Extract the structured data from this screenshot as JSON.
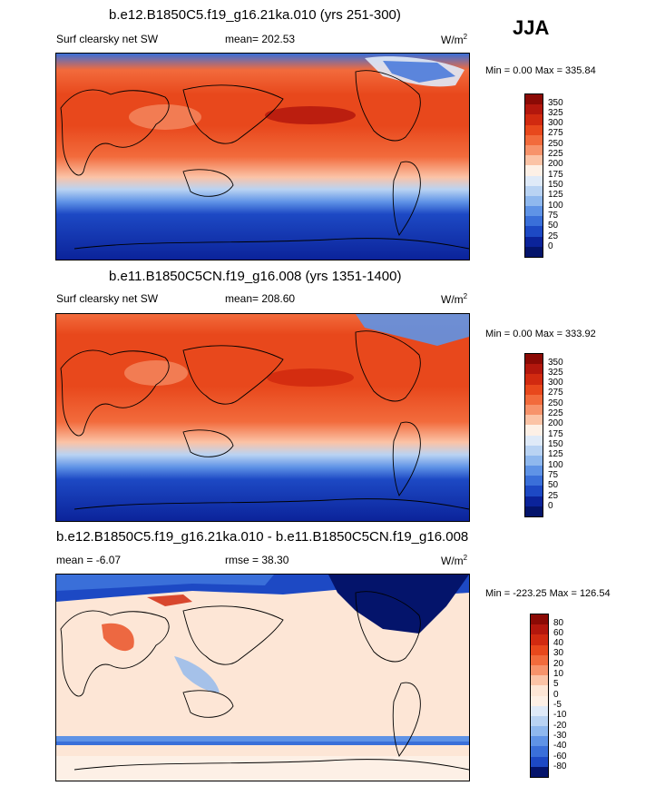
{
  "season": "JJA",
  "panels": [
    {
      "title": "b.e12.B1850C5.f19_g16.21ka.010 (yrs 251-300)",
      "left_label": "Surf clearsky net SW",
      "stat_label": "mean= 202.53",
      "units": "W/m",
      "units_sup": "2",
      "minmax": "Min =   0.00 Max = 335.84",
      "levels": [
        "350",
        "325",
        "300",
        "275",
        "250",
        "225",
        "200",
        "175",
        "150",
        "125",
        "100",
        "75",
        "50",
        "25",
        "0"
      ],
      "colors": [
        "#8b0a05",
        "#b3170d",
        "#d12a10",
        "#e8481c",
        "#f26b3c",
        "#f7936b",
        "#fbc3a6",
        "#fdf0e6",
        "#dfeaf8",
        "#b9d3f3",
        "#8fb8ee",
        "#5f93e6",
        "#3a6fd9",
        "#1d49c4",
        "#0b239a",
        "#04146b"
      ]
    },
    {
      "title": "b.e11.B1850C5CN.f19_g16.008 (yrs 1351-1400)",
      "left_label": "Surf clearsky net SW",
      "stat_label": "mean= 208.60",
      "units": "W/m",
      "units_sup": "2",
      "minmax": "Min =   0.00 Max = 333.92",
      "levels": [
        "350",
        "325",
        "300",
        "275",
        "250",
        "225",
        "200",
        "175",
        "150",
        "125",
        "100",
        "75",
        "50",
        "25",
        "0"
      ],
      "colors": [
        "#8b0a05",
        "#b3170d",
        "#d12a10",
        "#e8481c",
        "#f26b3c",
        "#f7936b",
        "#fbc3a6",
        "#fdf0e6",
        "#dfeaf8",
        "#b9d3f3",
        "#8fb8ee",
        "#5f93e6",
        "#3a6fd9",
        "#1d49c4",
        "#0b239a",
        "#04146b"
      ]
    },
    {
      "title": "b.e12.B1850C5.f19_g16.21ka.010 - b.e11.B1850C5CN.f19_g16.008",
      "left_label": "mean =  -6.07",
      "stat_label": "rmse =  38.30",
      "units": "W/m",
      "units_sup": "2",
      "minmax": "Min = -223.25 Max = 126.54",
      "levels": [
        "80",
        "60",
        "40",
        "30",
        "20",
        "10",
        "5",
        "0",
        "-5",
        "-10",
        "-20",
        "-30",
        "-40",
        "-60",
        "-80"
      ],
      "colors": [
        "#8b0a05",
        "#b3170d",
        "#d12a10",
        "#e8481c",
        "#f26b3c",
        "#f7936b",
        "#fbc3a6",
        "#fde6d6",
        "#fdf0e6",
        "#dfeaf8",
        "#b9d3f3",
        "#8fb8ee",
        "#5f93e6",
        "#3a6fd9",
        "#1d49c4",
        "#04146b"
      ]
    }
  ]
}
